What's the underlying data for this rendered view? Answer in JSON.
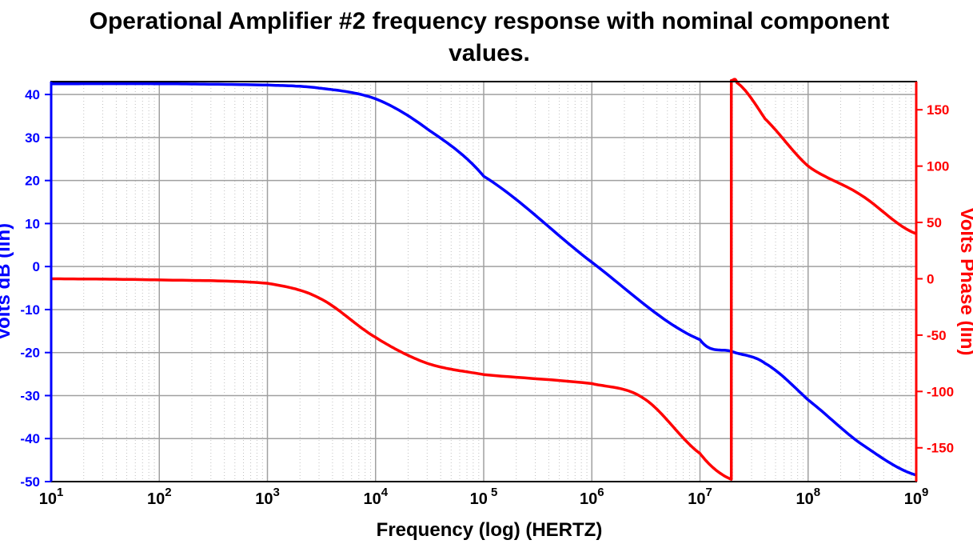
{
  "chart_data": {
    "type": "line",
    "title_lines": [
      "Operational Amplifier #2 frequency response with nominal component",
      "values."
    ],
    "xlabel": "Frequency (log) (HERTZ)",
    "ylabel_left": "Volts dB (lin)",
    "ylabel_right": "Volts Phase (lin)",
    "x_scale": "log",
    "xlim": [
      10,
      1000000000
    ],
    "ylim_left": [
      -50,
      43
    ],
    "ylim_right": [
      -180,
      175
    ],
    "x_ticks": [
      {
        "base": "10",
        "exp": "1"
      },
      {
        "base": "10",
        "exp": "2"
      },
      {
        "base": "10",
        "exp": "3"
      },
      {
        "base": "10",
        "exp": "4"
      },
      {
        "base": "10",
        "exp": " 5"
      },
      {
        "base": "10",
        "exp": "6"
      },
      {
        "base": "10",
        "exp": "7"
      },
      {
        "base": "10",
        "exp": "8"
      },
      {
        "base": "10",
        "exp": "9"
      }
    ],
    "y_ticks_left": [
      40,
      30,
      20,
      10,
      0,
      -10,
      -20,
      -30,
      -40,
      -50
    ],
    "y_ticks_right": [
      150,
      100,
      50,
      0,
      -50,
      -100,
      -150
    ],
    "grid": true,
    "series": [
      {
        "axis": "left",
        "color": "#0000ff",
        "x": [
          10,
          100,
          1000,
          3000,
          10000,
          30000,
          100000,
          1000000,
          10000000,
          20000000,
          40000000,
          100000000,
          300000000,
          1000000000
        ],
        "y": [
          42.5,
          42.5,
          42.2,
          41.5,
          39,
          32,
          21,
          1,
          -17,
          -19.8,
          -22.5,
          -31,
          -41,
          -48.5
        ]
      },
      {
        "axis": "right",
        "color": "#ff0000",
        "x": [
          10,
          100,
          1000,
          3000,
          10000,
          30000,
          100000,
          1000000,
          3000000,
          10000000,
          19500000,
          19500000,
          22000000,
          40000000,
          100000000,
          300000000,
          1000000000
        ],
        "y": [
          0,
          -1,
          -4,
          -17,
          -52,
          -75,
          -85,
          -93,
          -106,
          -155,
          -178,
          176,
          174,
          142,
          100,
          75,
          40
        ]
      }
    ],
    "colors": {
      "left_axis": "#0000ff",
      "right_axis": "#ff0000",
      "grid": "#a0a0a0",
      "minor_grid": "#c0c0c0"
    }
  }
}
